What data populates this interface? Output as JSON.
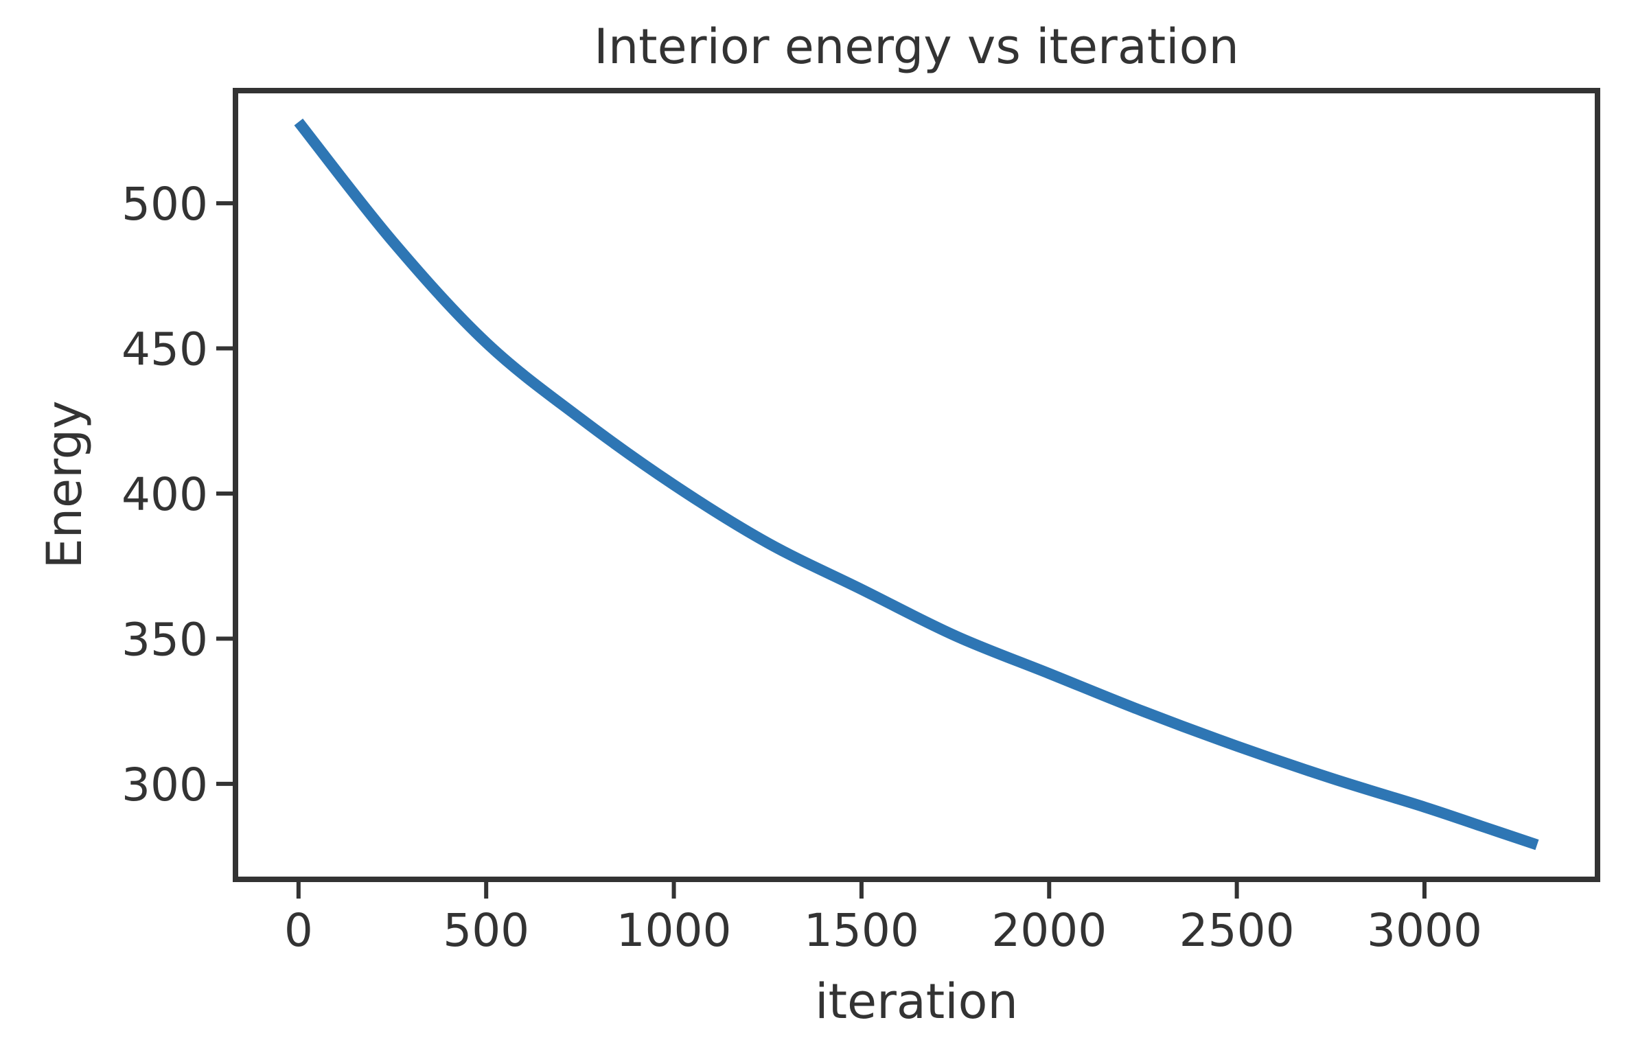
{
  "figure": {
    "background": "#ffffff"
  },
  "chart_data": {
    "type": "line",
    "title": "Interior energy vs iteration",
    "xlabel": "iteration",
    "ylabel": "Energy",
    "x_ticks": [
      0,
      500,
      1000,
      1500,
      2000,
      2500,
      3000
    ],
    "y_ticks": [
      300,
      350,
      400,
      450,
      500
    ],
    "xlim": [
      -168,
      3461
    ],
    "ylim": [
      267.1,
      538.8
    ],
    "grid": false,
    "legend_position": "none",
    "colors": {
      "line": "#2e76b4",
      "spine": "#333333",
      "text": "#333333",
      "background": "#ffffff"
    },
    "series": [
      {
        "name": "Energy",
        "color": "#2e76b4",
        "x": [
          0,
          250,
          500,
          750,
          1000,
          1250,
          1500,
          1750,
          2000,
          2250,
          2500,
          2750,
          3000,
          3150,
          3300
        ],
        "y": [
          528,
          487,
          452,
          426,
          403,
          383,
          367,
          351,
          338,
          325,
          313,
          302,
          292,
          285.5,
          279
        ]
      }
    ]
  }
}
